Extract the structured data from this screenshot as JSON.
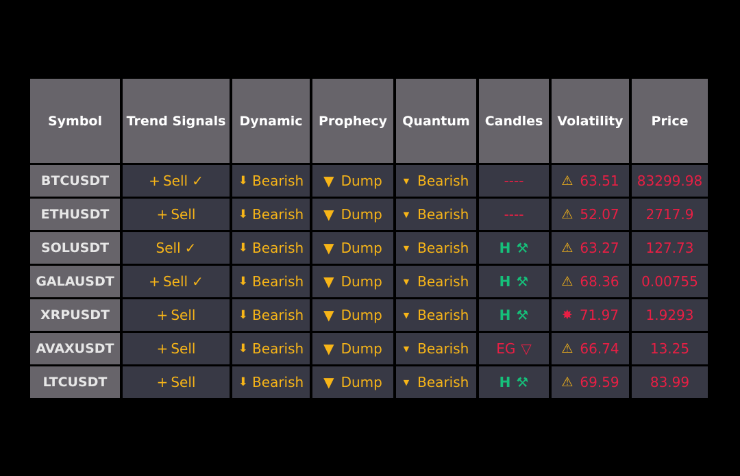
{
  "headers": [
    "Symbol",
    "Trend Signals",
    "Dynamic",
    "Prophecy",
    "Quantum",
    "Candles",
    "Volatility",
    "Price"
  ],
  "colors": {
    "background": "#000000",
    "header_bg": "#67646a",
    "cell_bg": "#383945",
    "signal_yellow": "#f7b518",
    "alert_red": "#e81f44",
    "candle_green": "#16c07a"
  },
  "rows": [
    {
      "symbol": "BTCUSDT",
      "trend_prefix": "+",
      "trend": "Sell",
      "trend_check": "✓",
      "dynamic_icon": "arrow-down-icon",
      "dynamic": "Bearish",
      "prophecy_icon": "triangle-down-icon",
      "prophecy": "Dump",
      "quantum_icon": "small-triangle-down-icon",
      "quantum": "Bearish",
      "candles": "----",
      "candles_icon": "",
      "volatility_icon": "warning-icon",
      "volatility": "63.51",
      "price": "83299.98"
    },
    {
      "symbol": "ETHUSDT",
      "trend_prefix": "+",
      "trend": "Sell",
      "trend_check": "",
      "dynamic_icon": "arrow-down-icon",
      "dynamic": "Bearish",
      "prophecy_icon": "triangle-down-icon",
      "prophecy": "Dump",
      "quantum_icon": "small-triangle-down-icon",
      "quantum": "Bearish",
      "candles": "----",
      "candles_icon": "",
      "volatility_icon": "warning-icon",
      "volatility": "52.07",
      "price": "2717.9"
    },
    {
      "symbol": "SOLUSDT",
      "trend_prefix": "",
      "trend": "Sell",
      "trend_check": "✓",
      "dynamic_icon": "arrow-down-icon",
      "dynamic": "Bearish",
      "prophecy_icon": "triangle-down-icon",
      "prophecy": "Dump",
      "quantum_icon": "small-triangle-down-icon",
      "quantum": "Bearish",
      "candles": "H",
      "candles_icon": "hammer-pick-icon",
      "volatility_icon": "warning-icon",
      "volatility": "63.27",
      "price": "127.73"
    },
    {
      "symbol": "GALAUSDT",
      "trend_prefix": "+",
      "trend": "Sell",
      "trend_check": "✓",
      "dynamic_icon": "arrow-down-icon",
      "dynamic": "Bearish",
      "prophecy_icon": "triangle-down-icon",
      "prophecy": "Dump",
      "quantum_icon": "small-triangle-down-icon",
      "quantum": "Bearish",
      "candles": "H",
      "candles_icon": "hammer-pick-icon",
      "volatility_icon": "warning-icon",
      "volatility": "68.36",
      "price": "0.00755"
    },
    {
      "symbol": "XRPUSDT",
      "trend_prefix": "+",
      "trend": "Sell",
      "trend_check": "",
      "dynamic_icon": "arrow-down-icon",
      "dynamic": "Bearish",
      "prophecy_icon": "triangle-down-icon",
      "prophecy": "Dump",
      "quantum_icon": "small-triangle-down-icon",
      "quantum": "Bearish",
      "candles": "H",
      "candles_icon": "hammer-pick-icon",
      "volatility_icon": "explosion-icon",
      "volatility": "71.97",
      "price": "1.9293"
    },
    {
      "symbol": "AVAXUSDT",
      "trend_prefix": "+",
      "trend": "Sell",
      "trend_check": "",
      "dynamic_icon": "arrow-down-icon",
      "dynamic": "Bearish",
      "prophecy_icon": "triangle-down-icon",
      "prophecy": "Dump",
      "quantum_icon": "small-triangle-down-icon",
      "quantum": "Bearish",
      "candles": "EG",
      "candles_icon": "outline-triangle-down-icon",
      "volatility_icon": "warning-icon",
      "volatility": "66.74",
      "price": "13.25"
    },
    {
      "symbol": "LTCUSDT",
      "trend_prefix": "+",
      "trend": "Sell",
      "trend_check": "",
      "dynamic_icon": "arrow-down-icon",
      "dynamic": "Bearish",
      "prophecy_icon": "triangle-down-icon",
      "prophecy": "Dump",
      "quantum_icon": "small-triangle-down-icon",
      "quantum": "Bearish",
      "candles": "H",
      "candles_icon": "hammer-pick-icon",
      "volatility_icon": "warning-icon",
      "volatility": "69.59",
      "price": "83.99"
    }
  ]
}
